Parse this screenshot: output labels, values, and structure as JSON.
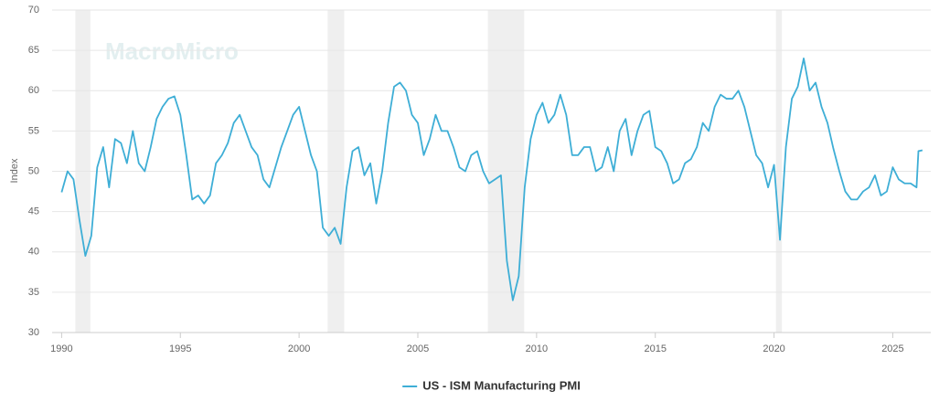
{
  "chart_data": {
    "type": "line",
    "watermark": "MacroMicro",
    "y_label": "Index",
    "xlim": [
      1989.6,
      2026.6
    ],
    "xticks": [
      1990,
      1995,
      2000,
      2005,
      2010,
      2015,
      2020,
      2025
    ],
    "ylim": [
      30,
      70
    ],
    "yticks": [
      30,
      35,
      40,
      45,
      50,
      55,
      60,
      65,
      70
    ],
    "grid": true,
    "legend": "bottom",
    "shaded_ranges": [
      [
        1990.58,
        1991.21
      ],
      [
        2001.2,
        2001.9
      ],
      [
        2007.95,
        2009.48
      ],
      [
        2020.08,
        2020.33
      ]
    ],
    "shade_color": "#efefef",
    "x": [
      1990.0,
      1990.25,
      1990.5,
      1990.75,
      1991.0,
      1991.25,
      1991.5,
      1991.75,
      1992.0,
      1992.25,
      1992.5,
      1992.75,
      1993.0,
      1993.25,
      1993.5,
      1993.75,
      1994.0,
      1994.25,
      1994.5,
      1994.75,
      1995.0,
      1995.25,
      1995.5,
      1995.75,
      1996.0,
      1996.25,
      1996.5,
      1996.75,
      1997.0,
      1997.25,
      1997.5,
      1997.75,
      1998.0,
      1998.25,
      1998.5,
      1998.75,
      1999.0,
      1999.25,
      1999.5,
      1999.75,
      2000.0,
      2000.25,
      2000.5,
      2000.75,
      2001.0,
      2001.25,
      2001.5,
      2001.75,
      2002.0,
      2002.25,
      2002.5,
      2002.75,
      2003.0,
      2003.25,
      2003.5,
      2003.75,
      2004.0,
      2004.25,
      2004.5,
      2004.75,
      2005.0,
      2005.25,
      2005.5,
      2005.75,
      2006.0,
      2006.25,
      2006.5,
      2006.75,
      2007.0,
      2007.25,
      2007.5,
      2007.75,
      2008.0,
      2008.25,
      2008.5,
      2008.75,
      2009.0,
      2009.25,
      2009.5,
      2009.75,
      2010.0,
      2010.25,
      2010.5,
      2010.75,
      2011.0,
      2011.25,
      2011.5,
      2011.75,
      2012.0,
      2012.25,
      2012.5,
      2012.75,
      2013.0,
      2013.25,
      2013.5,
      2013.75,
      2014.0,
      2014.25,
      2014.5,
      2014.75,
      2015.0,
      2015.25,
      2015.5,
      2015.75,
      2016.0,
      2016.25,
      2016.5,
      2016.75,
      2017.0,
      2017.25,
      2017.5,
      2017.75,
      2018.0,
      2018.25,
      2018.5,
      2018.75,
      2019.0,
      2019.25,
      2019.5,
      2019.75,
      2020.0,
      2020.25,
      2020.5,
      2020.75,
      2021.0,
      2021.25,
      2021.5,
      2021.75,
      2022.0,
      2022.25,
      2022.5,
      2022.75,
      2023.0,
      2023.25,
      2023.5,
      2023.75,
      2024.0,
      2024.25,
      2024.5,
      2024.75,
      2025.0,
      2025.25,
      2025.5,
      2025.75,
      2026.0,
      2026.08,
      2026.25
    ],
    "series": [
      {
        "name": "US - ISM Manufacturing PMI",
        "color": "#3eaed6",
        "values": [
          47.4,
          50,
          49,
          44,
          39.5,
          42,
          50.5,
          53,
          48,
          54,
          53.5,
          51,
          55,
          51,
          50,
          53,
          56.5,
          58,
          59,
          59.3,
          57,
          52,
          46.5,
          47,
          46,
          47,
          51,
          52,
          53.5,
          56,
          57,
          55,
          53,
          52,
          49,
          48,
          50.5,
          53,
          55,
          57,
          58,
          55,
          52,
          50,
          43,
          42,
          43,
          41,
          48,
          52.5,
          53,
          49.5,
          51,
          46,
          50,
          56,
          60.5,
          61,
          60,
          57,
          56,
          52,
          54,
          57,
          55,
          55,
          53,
          50.5,
          50,
          52,
          52.5,
          50,
          48.5,
          49,
          49.5,
          38.9,
          34,
          37,
          48,
          54,
          57,
          58.5,
          56,
          57,
          59.5,
          57,
          52,
          52,
          53,
          53,
          50,
          50.5,
          53,
          50,
          55,
          56.5,
          52,
          55,
          57,
          57.5,
          53,
          52.5,
          51,
          48.5,
          49,
          51,
          51.5,
          53,
          56,
          55,
          58,
          59.5,
          59,
          59,
          60,
          58,
          55,
          52,
          51,
          48,
          50.8,
          41.5,
          53,
          59,
          60.5,
          64,
          60,
          61,
          58,
          56,
          52.8,
          50,
          47.5,
          46.5,
          46.5,
          47.5,
          48,
          49.5,
          47,
          47.5,
          50.5,
          49,
          48.5,
          48.5,
          48,
          52.5,
          52.6
        ]
      }
    ]
  }
}
